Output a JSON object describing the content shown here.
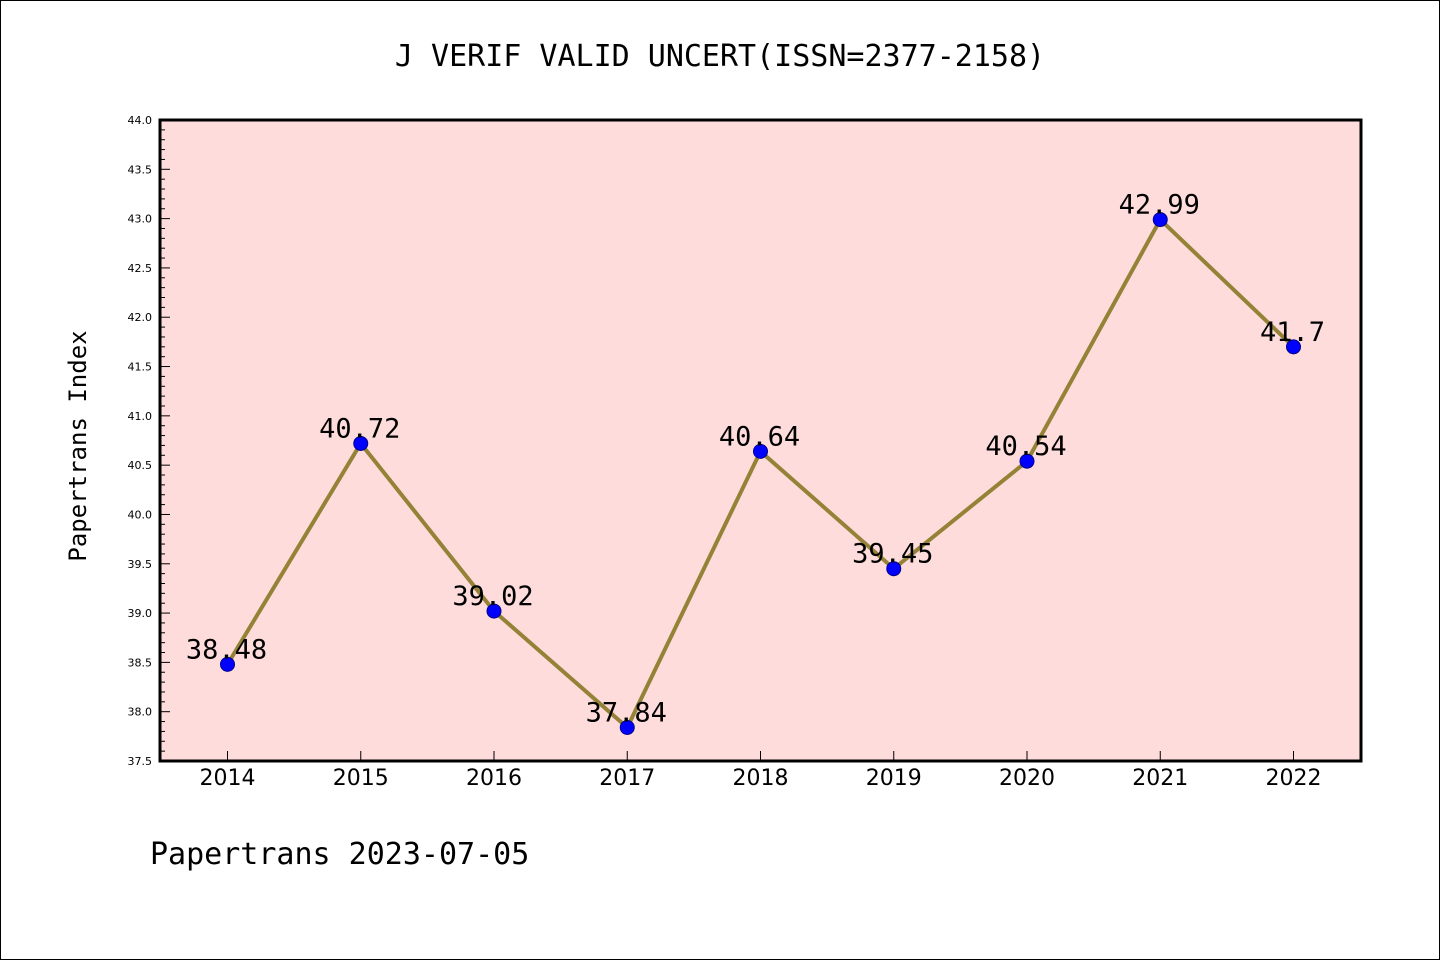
{
  "chart_data": {
    "type": "line",
    "title": "J VERIF VALID UNCERT(ISSN=2377-2158)",
    "ylabel": "Papertrans Index",
    "xlabel": "",
    "footer": "Papertrans 2023-07-05",
    "categories": [
      "2014",
      "2015",
      "2016",
      "2017",
      "2018",
      "2019",
      "2020",
      "2021",
      "2022"
    ],
    "values": [
      38.48,
      40.72,
      39.02,
      37.84,
      40.64,
      39.45,
      40.54,
      42.99,
      41.7
    ],
    "data_labels": [
      "38.48",
      "40.72",
      "39.02",
      "37.84",
      "40.64",
      "39.45",
      "40.54",
      "42.99",
      "41.7"
    ],
    "ylim": [
      37.5,
      44.0
    ],
    "yticks": [
      "37.5",
      "38.0",
      "38.5",
      "39.0",
      "39.5",
      "40.0",
      "40.5",
      "41.0",
      "41.5",
      "42.0",
      "42.5",
      "43.0",
      "43.5",
      "44.0"
    ],
    "grid": false,
    "colors": {
      "plot_background": "#ffdcdc",
      "line": "#948237",
      "marker": "#0000ff"
    }
  }
}
